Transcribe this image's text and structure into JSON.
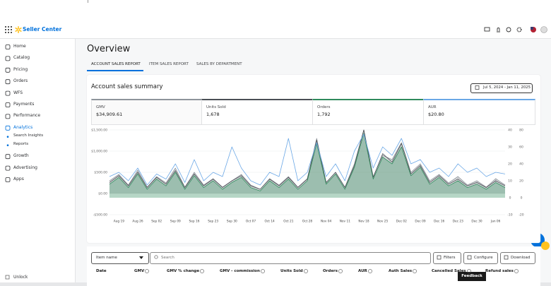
{
  "header": {
    "logo": "Seller Center"
  },
  "sidebar": {
    "items": [
      {
        "label": "Home"
      },
      {
        "label": "Catalog"
      },
      {
        "label": "Pricing"
      },
      {
        "label": "Orders"
      },
      {
        "label": "WFS"
      },
      {
        "label": "Payments"
      },
      {
        "label": "Performance"
      },
      {
        "label": "Analytics",
        "active": true,
        "children": [
          "Search Insights",
          "Reports"
        ]
      },
      {
        "label": "Growth"
      },
      {
        "label": "Advertising"
      },
      {
        "label": "Apps"
      }
    ],
    "footer": "Unlock"
  },
  "page": {
    "title": "Overview"
  },
  "tabs": [
    {
      "label": "ACCOUNT SALES REPORT",
      "active": true
    },
    {
      "label": "ITEM SALES REPORT"
    },
    {
      "label": "SALES BY DEPARTMENT"
    }
  ],
  "summary": {
    "title": "Account sales summary",
    "date_range": "Jul 5, 2024 - Jan 11, 2025",
    "metrics": [
      {
        "label": "GMV",
        "value": "$34,909.61"
      },
      {
        "label": "Units Sold",
        "value": "1,678"
      },
      {
        "label": "Orders",
        "value": "1,792"
      },
      {
        "label": "AUR",
        "value": "$20.80"
      }
    ]
  },
  "chart_data": {
    "type": "area",
    "categories": [
      null,
      "Aug 19",
      null,
      "Aug 26",
      null,
      "Sep 02",
      null,
      "Sep 09",
      null,
      "Sep 16",
      null,
      "Sep 23",
      null,
      "Sep 30",
      null,
      "Oct 07",
      null,
      "Oct 14",
      null,
      "Oct 21",
      null,
      "Oct 28",
      null,
      "Nov 04",
      null,
      "Nov 11",
      null,
      "Nov 18",
      null,
      "Nov 25",
      null,
      "Dec 02",
      null,
      "Dec 09",
      null,
      "Dec 16",
      null,
      "Dec 23",
      null,
      "Dec 30",
      null,
      "Jan 06",
      null
    ],
    "series": [
      {
        "name": "GMV",
        "style": "area",
        "color": "#8e949b",
        "values": [
          300,
          450,
          200,
          550,
          150,
          400,
          250,
          600,
          150,
          500,
          200,
          350,
          150,
          300,
          450,
          200,
          100,
          350,
          200,
          400,
          150,
          350,
          1300,
          250,
          500,
          150,
          700,
          1500,
          400,
          900,
          800,
          1200,
          500,
          700,
          300,
          450,
          250,
          400,
          200,
          300,
          150,
          350,
          200
        ]
      },
      {
        "name": "Units Sold",
        "style": "line",
        "axis": "y2",
        "color": "#4a4f55",
        "values": [
          9,
          13,
          7,
          15,
          6,
          12,
          8,
          16,
          6,
          14,
          7,
          11,
          6,
          10,
          13,
          7,
          5,
          11,
          7,
          12,
          6,
          11,
          34,
          9,
          15,
          6,
          19,
          40,
          12,
          26,
          21,
          32,
          14,
          19,
          9,
          13,
          8,
          11,
          7,
          9,
          6,
          10,
          7
        ]
      },
      {
        "name": "Orders",
        "style": "area",
        "axis": "y2",
        "color": "#2f8a5c",
        "values": [
          8,
          12,
          6,
          14,
          5,
          11,
          7,
          15,
          5,
          13,
          6,
          10,
          5,
          9,
          12,
          6,
          4,
          10,
          6,
          11,
          5,
          10,
          32,
          8,
          14,
          5,
          18,
          38,
          11,
          24,
          20,
          30,
          13,
          18,
          8,
          12,
          7,
          10,
          6,
          8,
          5,
          9,
          6
        ]
      },
      {
        "name": "AUR",
        "style": "line",
        "axis": "y3",
        "color": "#6aa7e6",
        "values": [
          25,
          30,
          20,
          35,
          15,
          28,
          22,
          40,
          18,
          45,
          20,
          30,
          25,
          60,
          35,
          20,
          15,
          30,
          25,
          70,
          20,
          30,
          65,
          25,
          40,
          20,
          55,
          75,
          35,
          60,
          50,
          70,
          40,
          45,
          30,
          35,
          25,
          40,
          30,
          35,
          25,
          30,
          28
        ]
      }
    ],
    "ylim": [
      -500,
      1500
    ],
    "yticks": [
      {
        "value": -500,
        "label": "-$500.00"
      },
      {
        "value": 0,
        "label": "$0.00"
      },
      {
        "value": 500,
        "label": "$500.00"
      },
      {
        "value": 1000,
        "label": "$1,000.00"
      },
      {
        "value": 1500,
        "label": "$1,500.00"
      }
    ],
    "y2lim": [
      -10,
      40
    ],
    "y2ticks": [
      -10,
      0,
      10,
      20,
      30,
      40
    ],
    "y3lim": [
      -20,
      80
    ],
    "y3ticks": [
      -20,
      0,
      20,
      40,
      60,
      80
    ],
    "grid": true
  },
  "table": {
    "item_select": "Item name",
    "search_placeholder": "Search",
    "buttons": [
      "Filters",
      "Configure",
      "Download"
    ],
    "columns": [
      "Date",
      "GMV",
      "GMV % change",
      "GMV - commission",
      "Units Sold",
      "Orders",
      "AUR",
      "Auth Sales",
      "Cancelled Sales",
      "Refund sales"
    ]
  },
  "feedback": "Feedback"
}
